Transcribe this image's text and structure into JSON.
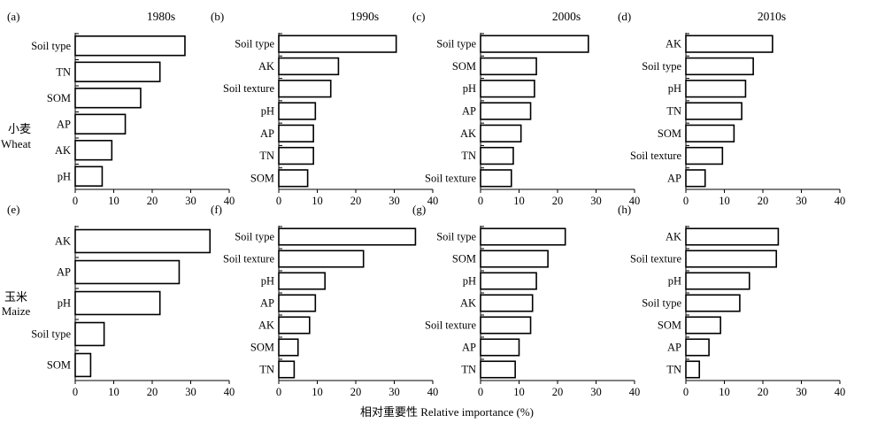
{
  "figure": {
    "xlabel": "相对重要性 Relative importance (%)",
    "rows": [
      {
        "label_cn": "小麦",
        "label_en": "Wheat"
      },
      {
        "label_cn": "玉米",
        "label_en": "Maize"
      }
    ]
  },
  "chart_data": [
    {
      "panel": "(a)",
      "type": "bar",
      "orientation": "horizontal",
      "title": "1980s",
      "crop": "Wheat",
      "categories": [
        "Soil type",
        "TN",
        "SOM",
        "AP",
        "AK",
        "pH"
      ],
      "values": [
        28.5,
        22,
        17,
        13,
        9.5,
        7
      ],
      "xlim": [
        0,
        40
      ],
      "xticks": [
        0,
        10,
        20,
        30,
        40
      ]
    },
    {
      "panel": "(b)",
      "type": "bar",
      "orientation": "horizontal",
      "title": "1990s",
      "crop": "Wheat",
      "categories": [
        "Soil type",
        "AK",
        "Soil texture",
        "pH",
        "AP",
        "TN",
        "SOM"
      ],
      "values": [
        30.5,
        15.5,
        13.5,
        9.5,
        9,
        9,
        7.5
      ],
      "xlim": [
        0,
        40
      ],
      "xticks": [
        0,
        10,
        20,
        30,
        40
      ]
    },
    {
      "panel": "(c)",
      "type": "bar",
      "orientation": "horizontal",
      "title": "2000s",
      "crop": "Wheat",
      "categories": [
        "Soil type",
        "SOM",
        "pH",
        "AP",
        "AK",
        "TN",
        "Soil texture"
      ],
      "values": [
        28,
        14.5,
        14,
        13,
        10.5,
        8.5,
        8
      ],
      "xlim": [
        0,
        40
      ],
      "xticks": [
        0,
        10,
        20,
        30,
        40
      ]
    },
    {
      "panel": "(d)",
      "type": "bar",
      "orientation": "horizontal",
      "title": "2010s",
      "crop": "Wheat",
      "categories": [
        "AK",
        "Soil type",
        "pH",
        "TN",
        "SOM",
        "Soil texture",
        "AP"
      ],
      "values": [
        22.5,
        17.5,
        15.5,
        14.5,
        12.5,
        9.5,
        5
      ],
      "xlim": [
        0,
        40
      ],
      "xticks": [
        0,
        10,
        20,
        30,
        40
      ]
    },
    {
      "panel": "(e)",
      "type": "bar",
      "orientation": "horizontal",
      "title": "",
      "crop": "Maize",
      "categories": [
        "AK",
        "AP",
        "pH",
        "Soil type",
        "SOM"
      ],
      "values": [
        35,
        27,
        22,
        7.5,
        4
      ],
      "xlim": [
        0,
        40
      ],
      "xticks": [
        0,
        10,
        20,
        30,
        40
      ]
    },
    {
      "panel": "(f)",
      "type": "bar",
      "orientation": "horizontal",
      "title": "",
      "crop": "Maize",
      "categories": [
        "Soil type",
        "Soil texture",
        "pH",
        "AP",
        "AK",
        "SOM",
        "TN"
      ],
      "values": [
        35.5,
        22,
        12,
        9.5,
        8,
        5,
        4
      ],
      "xlim": [
        0,
        40
      ],
      "xticks": [
        0,
        10,
        20,
        30,
        40
      ]
    },
    {
      "panel": "(g)",
      "type": "bar",
      "orientation": "horizontal",
      "title": "",
      "crop": "Maize",
      "categories": [
        "Soil type",
        "SOM",
        "pH",
        "AK",
        "Soil texture",
        "AP",
        "TN"
      ],
      "values": [
        22,
        17.5,
        14.5,
        13.5,
        13,
        10,
        9
      ],
      "xlim": [
        0,
        40
      ],
      "xticks": [
        0,
        10,
        20,
        30,
        40
      ]
    },
    {
      "panel": "(h)",
      "type": "bar",
      "orientation": "horizontal",
      "title": "",
      "crop": "Maize",
      "categories": [
        "AK",
        "Soil texture",
        "pH",
        "Soil type",
        "SOM",
        "AP",
        "TN"
      ],
      "values": [
        24,
        23.5,
        16.5,
        14,
        9,
        6,
        3.5
      ],
      "xlim": [
        0,
        40
      ],
      "xticks": [
        0,
        10,
        20,
        30,
        40
      ]
    }
  ]
}
